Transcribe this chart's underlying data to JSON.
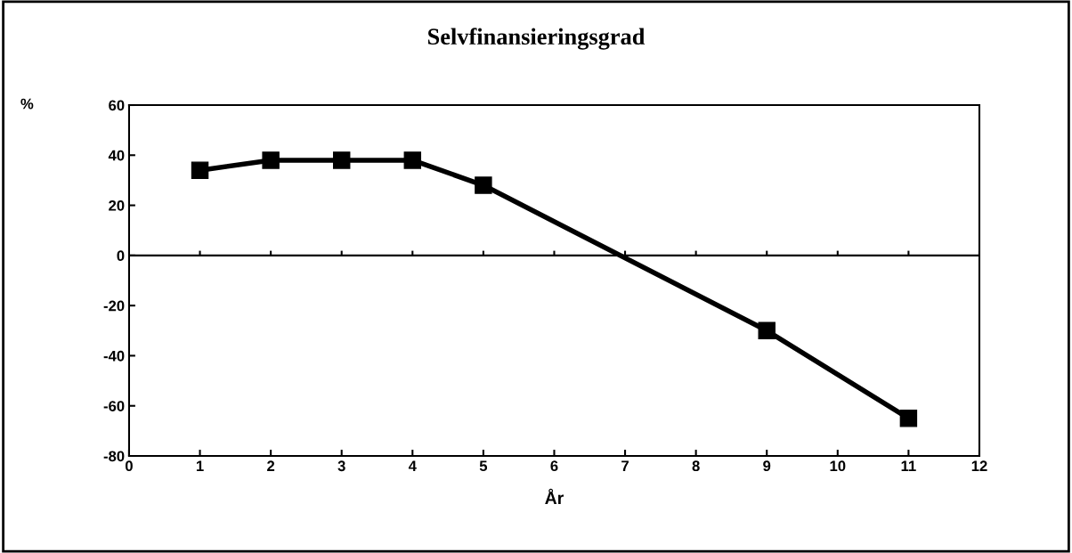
{
  "chart_data": {
    "type": "line",
    "title": "Selvfinansieringsgrad",
    "ylabel": "%",
    "xlabel": "År",
    "x": [
      1,
      2,
      3,
      4,
      5,
      9,
      11
    ],
    "series": [
      {
        "color": "#000000",
        "values": [
          34,
          38,
          38,
          38,
          28,
          -30,
          -65
        ]
      }
    ],
    "xlim": [
      0,
      12
    ],
    "xticks": [
      0,
      1,
      2,
      3,
      4,
      5,
      6,
      7,
      8,
      9,
      10,
      11,
      12
    ],
    "ylim": [
      -80,
      60
    ],
    "yticks": [
      -80,
      -60,
      -40,
      -20,
      0,
      20,
      40,
      60
    ],
    "ref_lines": [
      {
        "axis": "y",
        "value": 0,
        "color": "#000000"
      }
    ],
    "marker": "square",
    "line_style": "solid"
  }
}
